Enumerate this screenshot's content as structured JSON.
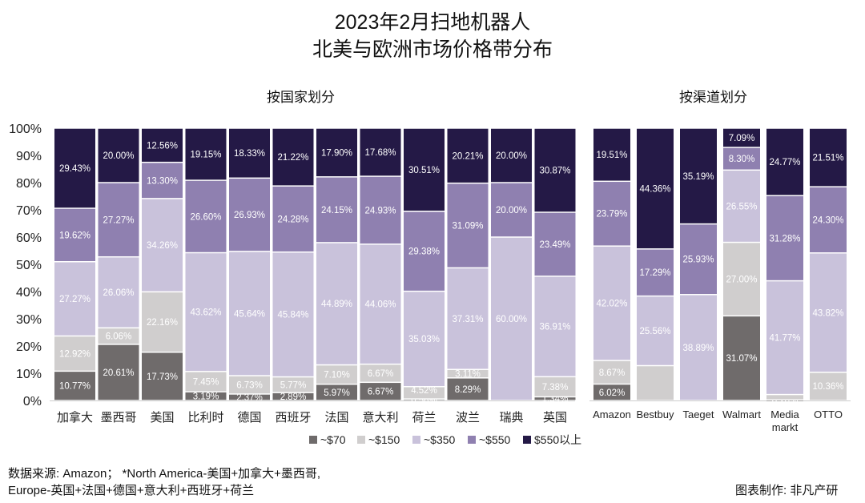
{
  "title_line1": "2023年2月扫地机器人",
  "title_line2": "北美与欧洲市场价格带分布",
  "source_line1": "数据来源: Amazon；  *North America-美国+加拿大+墨西哥,",
  "source_line2": "Europe-英国+法国+德国+意大利+西班牙+荷兰",
  "credit": "图表制作: 非凡产研",
  "colors": {
    "~$70": "#6f6b6b",
    "~$150": "#d0cece",
    "~$350": "#c9c2db",
    "~$550": "#8f80b0",
    "$550以上": "#241946"
  },
  "chart_data": [
    {
      "type": "bar",
      "stacked": true,
      "title": "按国家划分",
      "ylim": [
        0,
        100
      ],
      "yticks": [
        "0%",
        "10%",
        "20%",
        "30%",
        "40%",
        "50%",
        "60%",
        "70%",
        "80%",
        "90%",
        "100%"
      ],
      "categories": [
        "加拿大",
        "墨西哥",
        "美国",
        "比利时",
        "德国",
        "西班牙",
        "法国",
        "意大利",
        "荷兰",
        "波兰",
        "瑞典",
        "英国"
      ],
      "series": [
        {
          "name": "~$70",
          "values": [
            10.77,
            20.61,
            17.73,
            3.19,
            2.37,
            2.89,
            5.97,
            6.67,
            0.56,
            8.29,
            0,
            1.34
          ],
          "labels": [
            "10.77%",
            "20.61%",
            "17.73%",
            "3.19%",
            "2.37%",
            "2.89%",
            "5.97%",
            "6.67%",
            "0.56%",
            "8.29%",
            "",
            "1.34%"
          ]
        },
        {
          "name": "~$150",
          "values": [
            12.92,
            6.06,
            22.16,
            7.45,
            6.73,
            5.77,
            7.1,
            6.67,
            4.52,
            3.11,
            0,
            7.38
          ],
          "labels": [
            "12.92%",
            "6.06%",
            "22.16%",
            "7.45%",
            "6.73%",
            "5.77%",
            "7.10%",
            "6.67%",
            "4.52%",
            "3.11%",
            "0.00%",
            "7.38%"
          ]
        },
        {
          "name": "~$350",
          "values": [
            27.27,
            26.06,
            34.26,
            43.62,
            45.64,
            45.84,
            44.89,
            44.06,
            35.03,
            37.31,
            60.0,
            36.91
          ],
          "labels": [
            "27.27%",
            "26.06%",
            "34.26%",
            "43.62%",
            "45.64%",
            "45.84%",
            "44.89%",
            "44.06%",
            "35.03%",
            "37.31%",
            "60.00%",
            "36.91%"
          ]
        },
        {
          "name": "~$550",
          "values": [
            19.62,
            27.27,
            13.3,
            26.6,
            26.93,
            24.28,
            24.15,
            24.93,
            29.38,
            31.09,
            20.0,
            23.49
          ],
          "labels": [
            "19.62%",
            "27.27%",
            "13.30%",
            "26.60%",
            "26.93%",
            "24.28%",
            "24.15%",
            "24.93%",
            "29.38%",
            "31.09%",
            "20.00%",
            "23.49%"
          ]
        },
        {
          "name": "$550以上",
          "values": [
            29.43,
            20.0,
            12.56,
            19.15,
            18.33,
            21.22,
            17.9,
            17.68,
            30.51,
            20.21,
            20.0,
            30.87
          ],
          "labels": [
            "29.43%",
            "20.00%",
            "12.56%",
            "19.15%",
            "18.33%",
            "21.22%",
            "17.90%",
            "17.68%",
            "30.51%",
            "20.21%",
            "20.00%",
            "30.87%"
          ]
        }
      ]
    },
    {
      "type": "bar",
      "stacked": true,
      "title": "按渠道划分",
      "ylim": [
        0,
        100
      ],
      "categories": [
        "Amazon",
        "Bestbuy",
        "Taeget",
        "Walmart",
        "Media markt",
        "OTTO"
      ],
      "series": [
        {
          "name": "~$70",
          "values": [
            6.02,
            0,
            0,
            31.07,
            0.2,
            0
          ],
          "labels": [
            "6.02%",
            "",
            "",
            "31.07%",
            "0.20%",
            "0.00%"
          ]
        },
        {
          "name": "~$150",
          "values": [
            8.67,
            12.79,
            0,
            27.0,
            1.98,
            10.36
          ],
          "labels": [
            "8.67%",
            "",
            "",
            "27.00%",
            "1.98%",
            "10.36%"
          ]
        },
        {
          "name": "~$350",
          "values": [
            42.02,
            25.56,
            38.89,
            26.55,
            41.77,
            43.82
          ],
          "labels": [
            "42.02%",
            "25.56%",
            "38.89%",
            "26.55%",
            "41.77%",
            "43.82%"
          ]
        },
        {
          "name": "~$550",
          "values": [
            23.79,
            17.29,
            25.93,
            8.3,
            31.28,
            24.3
          ],
          "labels": [
            "23.79%",
            "17.29%",
            "25.93%",
            "8.30%",
            "31.28%",
            "24.30%"
          ]
        },
        {
          "name": "$550以上",
          "values": [
            19.51,
            44.36,
            35.19,
            7.09,
            24.77,
            21.51
          ],
          "labels": [
            "19.51%",
            "44.36%",
            "35.19%",
            "7.09%",
            "24.77%",
            "21.51%"
          ]
        }
      ]
    }
  ],
  "legend": [
    "~$70",
    "~$150",
    "~$350",
    "~$550",
    "$550以上"
  ]
}
